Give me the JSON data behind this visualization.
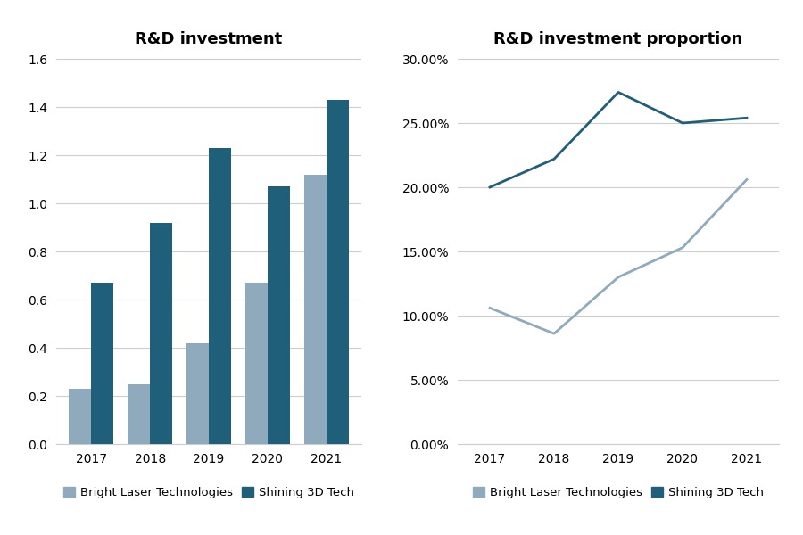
{
  "years": [
    2017,
    2018,
    2019,
    2020,
    2021
  ],
  "bar_bright": [
    0.23,
    0.25,
    0.42,
    0.67,
    1.12
  ],
  "bar_shining": [
    0.67,
    0.92,
    1.23,
    1.07,
    1.43
  ],
  "line_bright": [
    0.106,
    0.086,
    0.13,
    0.153,
    0.206
  ],
  "line_shining": [
    0.2,
    0.222,
    0.274,
    0.25,
    0.254
  ],
  "color_bright": "#8FAABC",
  "color_shining": "#1F5F7A",
  "bar_title": "R&D investment",
  "line_title": "R&D investment proportion",
  "bar_ylim": [
    0,
    1.6
  ],
  "bar_yticks": [
    0,
    0.2,
    0.4,
    0.6,
    0.8,
    1.0,
    1.2,
    1.4,
    1.6
  ],
  "line_ylim": [
    0,
    0.3
  ],
  "line_yticks": [
    0.0,
    0.05,
    0.1,
    0.15,
    0.2,
    0.25,
    0.3
  ],
  "legend_bright": "Bright Laser Technologies",
  "legend_shining": "Shining 3D Tech",
  "background_color": "#FFFFFF",
  "grid_color": "#CCCCCC",
  "title_fontsize": 13,
  "label_fontsize": 10,
  "legend_fontsize": 9.5,
  "bar_width": 0.38
}
